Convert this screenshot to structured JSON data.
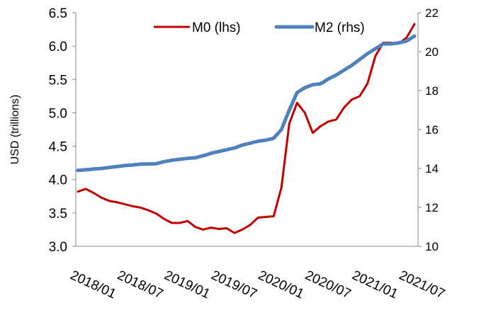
{
  "chart_data": {
    "type": "line",
    "title": "",
    "ylabel": "USD (trillions)",
    "ylabel_right": "",
    "xlabel": "",
    "ylim": [
      3.0,
      6.5
    ],
    "ylim_right": [
      10,
      22
    ],
    "yticks": [
      "3.0",
      "3.5",
      "4.0",
      "4.5",
      "5.0",
      "5.5",
      "6.0",
      "6.5"
    ],
    "yticks_right": [
      "10",
      "12",
      "14",
      "16",
      "18",
      "20",
      "22"
    ],
    "xtick_labels": [
      "2018/01",
      "2018/07",
      "2019/01",
      "2019/07",
      "2020/01",
      "2020/07",
      "2021/01",
      "2021/07"
    ],
    "x_start": "2018/01",
    "frequency": "monthly",
    "legend_position": "top",
    "series": [
      {
        "name": "M0 (lhs)",
        "axis": "left",
        "color": "#C00000",
        "values": [
          3.82,
          3.86,
          3.8,
          3.73,
          3.68,
          3.66,
          3.63,
          3.6,
          3.58,
          3.54,
          3.49,
          3.41,
          3.35,
          3.35,
          3.38,
          3.29,
          3.25,
          3.28,
          3.26,
          3.27,
          3.2,
          3.25,
          3.32,
          3.43,
          3.44,
          3.45,
          3.88,
          4.84,
          5.15,
          5.0,
          4.7,
          4.8,
          4.87,
          4.9,
          5.08,
          5.2,
          5.25,
          5.44,
          5.85,
          6.05,
          6.05,
          6.04,
          6.13,
          6.33
        ]
      },
      {
        "name": "M2 (rhs)",
        "axis": "right",
        "color": "#4F81BD",
        "values": [
          13.9,
          13.93,
          13.97,
          14.0,
          14.05,
          14.1,
          14.15,
          14.18,
          14.22,
          14.23,
          14.24,
          14.35,
          14.42,
          14.47,
          14.52,
          14.55,
          14.65,
          14.78,
          14.87,
          14.96,
          15.05,
          15.2,
          15.3,
          15.4,
          15.45,
          15.55,
          16.0,
          17.0,
          17.9,
          18.15,
          18.3,
          18.35,
          18.6,
          18.8,
          19.05,
          19.3,
          19.6,
          19.9,
          20.15,
          20.4,
          20.4,
          20.45,
          20.55,
          20.8
        ]
      }
    ]
  }
}
